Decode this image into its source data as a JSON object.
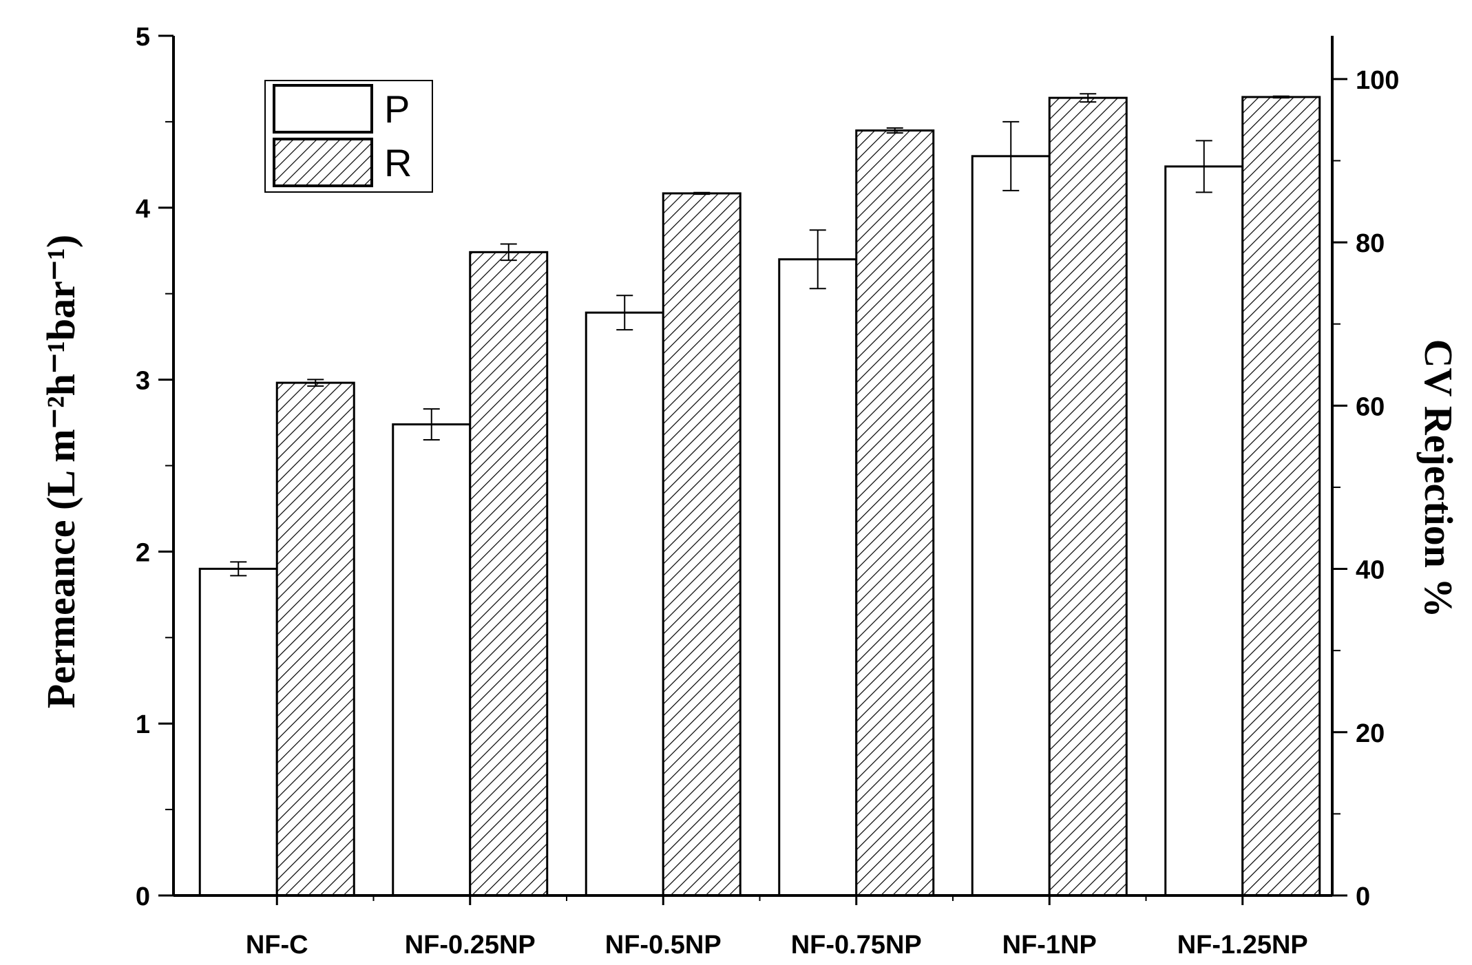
{
  "chart_data": {
    "type": "bar",
    "categories": [
      "NF-C",
      "NF-0.25NP",
      "NF-0.5NP",
      "NF-0.75NP",
      "NF-1NP",
      "NF-1.25NP"
    ],
    "series": [
      {
        "name": "P",
        "axis": "left",
        "pattern": "open",
        "values": [
          1.9,
          2.74,
          3.39,
          3.7,
          4.3,
          4.24
        ],
        "errors": [
          0.04,
          0.09,
          0.1,
          0.17,
          0.2,
          0.15
        ]
      },
      {
        "name": "R",
        "axis": "right",
        "pattern": "diagonal-hatch",
        "values": [
          62.8,
          78.8,
          86.0,
          93.7,
          97.7,
          97.8
        ],
        "errors": [
          0.4,
          1.0,
          0.1,
          0.3,
          0.5,
          0.1
        ]
      }
    ],
    "ylabel": "Permeance (L m⁻²h⁻¹bar⁻¹)",
    "y2label": "CV Rejection %",
    "xlabel": "",
    "ylim": [
      0,
      5
    ],
    "y2lim": [
      0,
      105.3
    ],
    "yticks": [
      "0",
      "1",
      "2",
      "3",
      "4",
      "5"
    ],
    "y2ticks": [
      "0",
      "20",
      "40",
      "60",
      "80",
      "100"
    ],
    "legend_position": "top-left",
    "grid": false,
    "colors": {
      "axis": "#000000",
      "bar_fill": "#ffffff",
      "hatch": "#000000"
    }
  }
}
